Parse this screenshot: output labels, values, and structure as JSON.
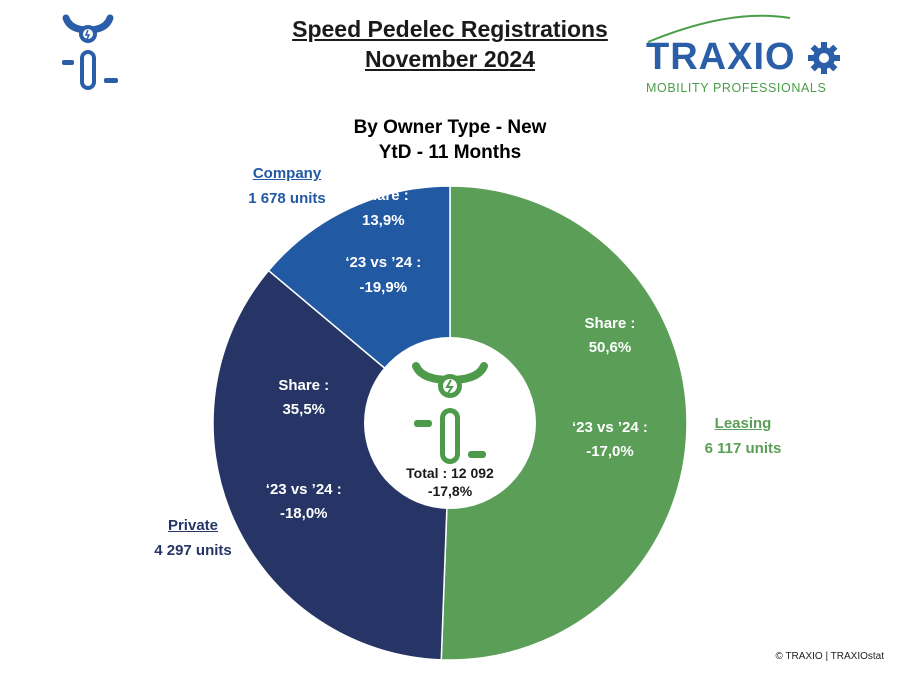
{
  "header": {
    "title_line1": "Speed Pedelec Registrations",
    "title_line2": "November 2024",
    "subtitle_line1": "By Owner Type - New",
    "subtitle_line2": "YtD - 11 Months"
  },
  "logo": {
    "name": "TRAXIO",
    "tagline": "MOBILITY PROFESSIONALS",
    "icon": "gear-icon"
  },
  "brand_icon": "speed-pedelec-icon",
  "colors": {
    "leasing": "#5a9e57",
    "private": "#263566",
    "company": "#2159a3",
    "center_icon": "#4c9a4a",
    "logo_blue": "#2b5ea8",
    "logo_green": "#4a9e4a"
  },
  "chart_data": {
    "type": "pie",
    "title": "By Owner Type - New",
    "subtitle": "YtD - 11 Months",
    "center_label": {
      "total": "Total : 12 092",
      "change": "-17,8%"
    },
    "share_label": "Share :",
    "change_label": "‘23 vs ’24 :",
    "unit": "units",
    "slices": [
      {
        "name": "Leasing",
        "units": "6 117 units",
        "value": 6117,
        "share": 50.6,
        "share_text": "50,6%",
        "change_text": "-17,0%",
        "color": "#5a9e57"
      },
      {
        "name": "Private",
        "units": "4 297 units",
        "value": 4297,
        "share": 35.5,
        "share_text": "35,5%",
        "change_text": "-18,0%",
        "color": "#263566"
      },
      {
        "name": "Company",
        "units": "1 678 units",
        "value": 1678,
        "share": 13.9,
        "share_text": "13,9%",
        "change_text": "-19,9%",
        "color": "#2159a3"
      }
    ]
  },
  "footer": {
    "copyright": "© TRAXIO | TRAXIOstat"
  }
}
